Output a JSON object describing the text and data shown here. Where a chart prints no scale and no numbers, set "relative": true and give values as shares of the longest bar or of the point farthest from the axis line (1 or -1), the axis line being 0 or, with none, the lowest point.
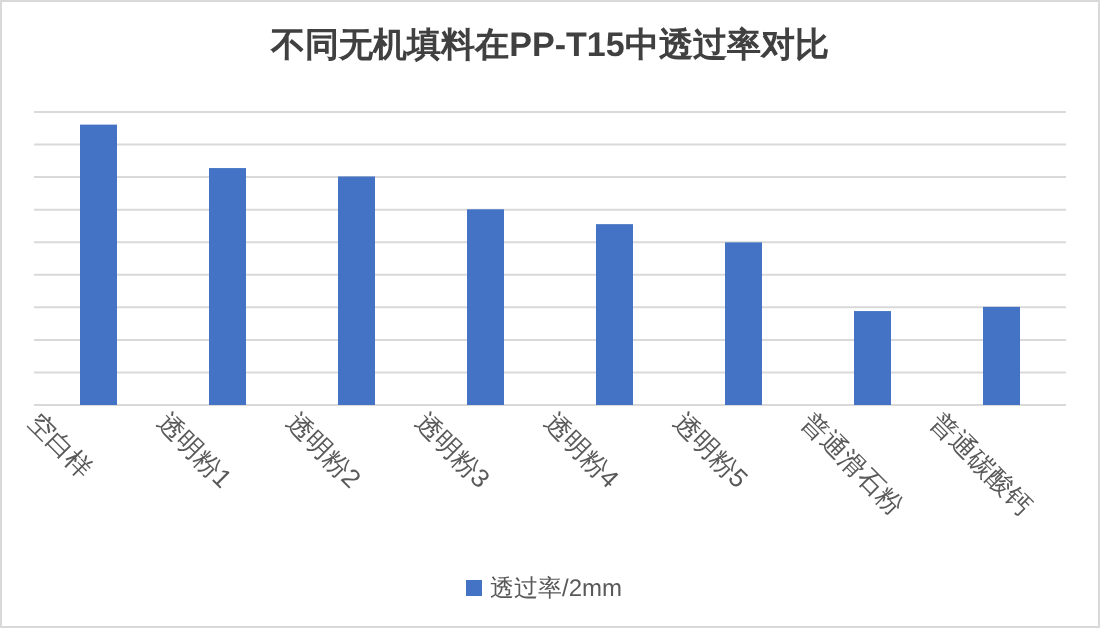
{
  "chart_data": {
    "type": "bar",
    "title": "不同无机填料在PP-T15中透过率对比",
    "categories": [
      "空白样",
      "透明粉1",
      "透明粉2",
      "透明粉3",
      "透明粉4",
      "透明粉5",
      "普通滑石粉",
      "普通碳酸钙"
    ],
    "series": [
      {
        "name": "透过率/2mm",
        "color": "#4472c4",
        "values": [
          1,
          0.845,
          0.815,
          0.698,
          0.645,
          0.58,
          0.335,
          0.35
        ]
      }
    ],
    "relative": true,
    "grid": "y",
    "legend": "bottom"
  }
}
